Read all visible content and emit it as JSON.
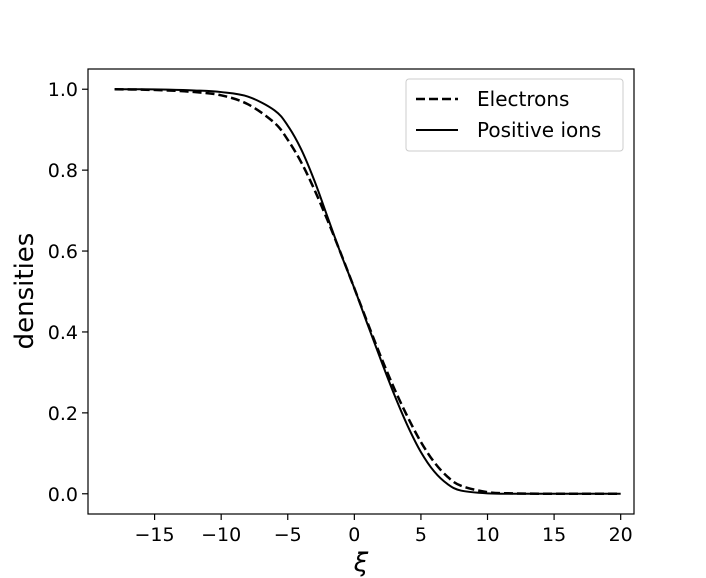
{
  "chart_data": {
    "type": "line",
    "xlabel": "ξ",
    "ylabel": "densities",
    "xlim": [
      -20,
      21
    ],
    "ylim": [
      -0.05,
      1.05
    ],
    "xticks": [
      -15,
      -10,
      -5,
      0,
      5,
      10,
      15,
      20
    ],
    "xtick_labels": [
      "−15",
      "−10",
      "−5",
      "0",
      "5",
      "10",
      "15",
      "20"
    ],
    "yticks": [
      0.0,
      0.2,
      0.4,
      0.6,
      0.8,
      1.0
    ],
    "ytick_labels": [
      "0.0",
      "0.2",
      "0.4",
      "0.6",
      "0.8",
      "1.0"
    ],
    "grid": false,
    "legend_position": "top-right",
    "series": [
      {
        "name": "Electrons",
        "style": "dashed",
        "color": "#000000",
        "x": [
          -18,
          -16,
          -14,
          -12,
          -10,
          -8,
          -6,
          -5,
          -4,
          -3,
          -2,
          -1,
          0,
          1,
          2,
          3,
          4,
          5,
          6,
          7,
          8,
          10,
          12,
          14,
          16,
          18,
          20
        ],
        "y": [
          1.0,
          0.999,
          0.997,
          0.993,
          0.985,
          0.963,
          0.917,
          0.875,
          0.82,
          0.752,
          0.675,
          0.593,
          0.508,
          0.422,
          0.338,
          0.26,
          0.19,
          0.128,
          0.078,
          0.042,
          0.02,
          0.004,
          0.001,
          0.0,
          0.0,
          0.0,
          0.0
        ]
      },
      {
        "name": "Positive ions",
        "style": "solid",
        "color": "#000000",
        "x": [
          -18,
          -16,
          -14,
          -12,
          -10,
          -8,
          -6,
          -5,
          -4,
          -3,
          -2,
          -1,
          0,
          1,
          2,
          3,
          4,
          5,
          6,
          7,
          8,
          10,
          12,
          14,
          16,
          18,
          20
        ],
        "y": [
          1.0,
          1.0,
          0.999,
          0.997,
          0.993,
          0.982,
          0.948,
          0.91,
          0.852,
          0.774,
          0.683,
          0.592,
          0.508,
          0.418,
          0.33,
          0.245,
          0.168,
          0.103,
          0.055,
          0.024,
          0.008,
          0.001,
          0.0,
          0.0,
          0.0,
          0.0,
          0.0
        ]
      }
    ]
  }
}
